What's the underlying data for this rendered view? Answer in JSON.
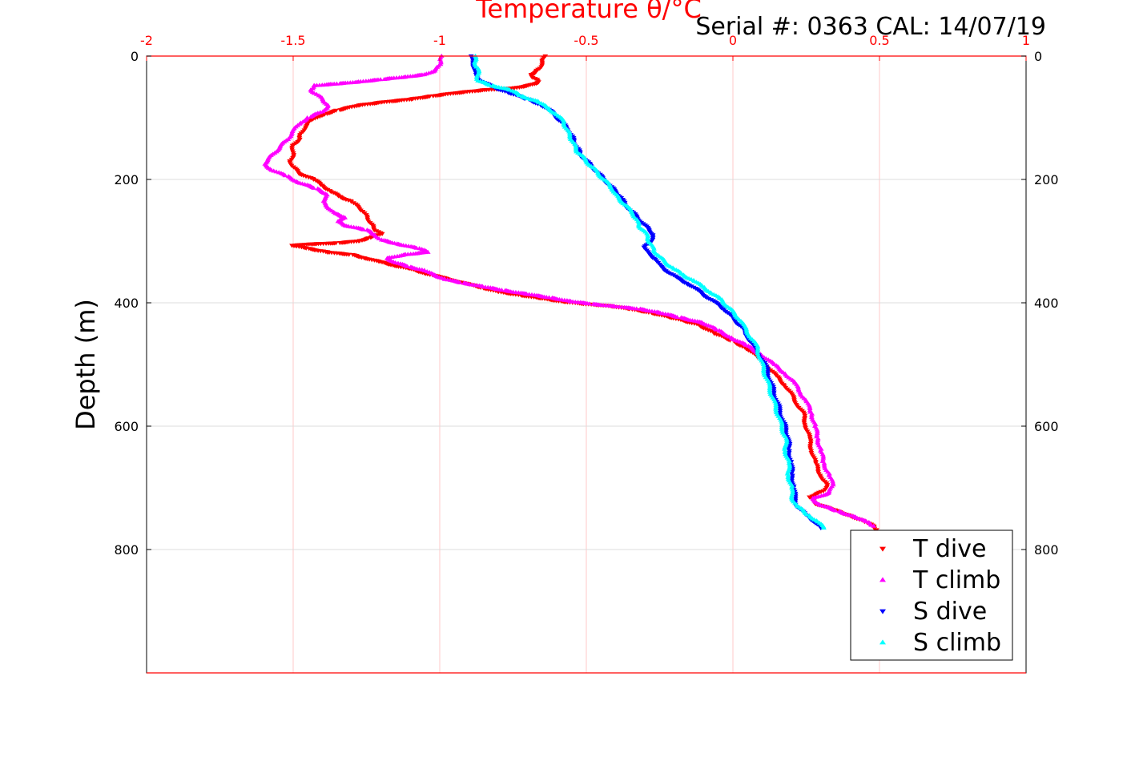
{
  "serial_label": "Serial #: 0363  CAL: 14/07/19",
  "chart_data": {
    "type": "scatter",
    "title": "",
    "xlabel": "Temperature θ/°C",
    "ylabel": "Depth (m)",
    "xlim": [
      -2,
      1
    ],
    "ylim": [
      0,
      1000
    ],
    "y_reversed": true,
    "x_axis_position": "top",
    "x_ticks": [
      "-2",
      "-1.5",
      "-1",
      "-0.5",
      "0",
      "0.5",
      "1"
    ],
    "y_ticks": [
      "0",
      "200",
      "400",
      "600",
      "800"
    ],
    "grid": true,
    "legend_position": "bottom-right",
    "colors": {
      "axis_x": "#ff0000",
      "grid_x": "#ffc8c8",
      "grid_y": "#dddddd"
    },
    "series": [
      {
        "name": "T dive",
        "color": "#ff0000",
        "marker": "triangle-down",
        "points": [
          [
            -0.64,
            0
          ],
          [
            -0.65,
            10
          ],
          [
            -0.66,
            20
          ],
          [
            -0.67,
            25
          ],
          [
            -0.69,
            30
          ],
          [
            -0.68,
            35
          ],
          [
            -0.67,
            38
          ],
          [
            -0.66,
            42
          ],
          [
            -0.68,
            45
          ],
          [
            -0.7,
            48
          ],
          [
            -0.75,
            52
          ],
          [
            -0.85,
            55
          ],
          [
            -0.95,
            60
          ],
          [
            -1.03,
            65
          ],
          [
            -1.1,
            70
          ],
          [
            -1.2,
            75
          ],
          [
            -1.28,
            80
          ],
          [
            -1.35,
            88
          ],
          [
            -1.4,
            95
          ],
          [
            -1.44,
            105
          ],
          [
            -1.46,
            115
          ],
          [
            -1.47,
            125
          ],
          [
            -1.48,
            135
          ],
          [
            -1.5,
            145
          ],
          [
            -1.5,
            160
          ],
          [
            -1.51,
            170
          ],
          [
            -1.5,
            180
          ],
          [
            -1.48,
            190
          ],
          [
            -1.43,
            200
          ],
          [
            -1.4,
            210
          ],
          [
            -1.37,
            220
          ],
          [
            -1.34,
            228
          ],
          [
            -1.3,
            236
          ],
          [
            -1.28,
            244
          ],
          [
            -1.26,
            252
          ],
          [
            -1.25,
            260
          ],
          [
            -1.24,
            268
          ],
          [
            -1.23,
            275
          ],
          [
            -1.22,
            282
          ],
          [
            -1.2,
            288
          ],
          [
            -1.24,
            295
          ],
          [
            -1.28,
            300
          ],
          [
            -1.35,
            303
          ],
          [
            -1.45,
            305
          ],
          [
            -1.5,
            307
          ],
          [
            -1.45,
            312
          ],
          [
            -1.38,
            318
          ],
          [
            -1.3,
            322
          ],
          [
            -1.25,
            328
          ],
          [
            -1.2,
            334
          ],
          [
            -1.15,
            340
          ],
          [
            -1.1,
            345
          ],
          [
            -1.05,
            352
          ],
          [
            -1.0,
            358
          ],
          [
            -0.95,
            364
          ],
          [
            -0.9,
            370
          ],
          [
            -0.85,
            376
          ],
          [
            -0.8,
            382
          ],
          [
            -0.72,
            388
          ],
          [
            -0.65,
            393
          ],
          [
            -0.58,
            398
          ],
          [
            -0.5,
            402
          ],
          [
            -0.42,
            405
          ],
          [
            -0.35,
            410
          ],
          [
            -0.28,
            416
          ],
          [
            -0.2,
            425
          ],
          [
            -0.12,
            435
          ],
          [
            -0.06,
            450
          ],
          [
            0.0,
            462
          ],
          [
            0.05,
            475
          ],
          [
            0.09,
            490
          ],
          [
            0.12,
            505
          ],
          [
            0.15,
            520
          ],
          [
            0.18,
            535
          ],
          [
            0.2,
            550
          ],
          [
            0.22,
            565
          ],
          [
            0.24,
            580
          ],
          [
            0.25,
            600
          ],
          [
            0.26,
            620
          ],
          [
            0.27,
            640
          ],
          [
            0.28,
            660
          ],
          [
            0.3,
            680
          ],
          [
            0.32,
            695
          ],
          [
            0.31,
            705
          ],
          [
            0.26,
            715
          ],
          [
            0.28,
            725
          ],
          [
            0.34,
            735
          ],
          [
            0.4,
            745
          ],
          [
            0.45,
            755
          ],
          [
            0.48,
            762
          ],
          [
            0.49,
            768
          ]
        ]
      },
      {
        "name": "T climb",
        "color": "#ff00ff",
        "marker": "triangle-up",
        "points": [
          [
            -0.99,
            0
          ],
          [
            -1.0,
            8
          ],
          [
            -1.0,
            16
          ],
          [
            -1.02,
            24
          ],
          [
            -1.05,
            30
          ],
          [
            -1.12,
            34
          ],
          [
            -1.2,
            38
          ],
          [
            -1.28,
            42
          ],
          [
            -1.35,
            45
          ],
          [
            -1.43,
            48
          ],
          [
            -1.44,
            55
          ],
          [
            -1.42,
            62
          ],
          [
            -1.4,
            70
          ],
          [
            -1.38,
            80
          ],
          [
            -1.4,
            90
          ],
          [
            -1.45,
            100
          ],
          [
            -1.48,
            110
          ],
          [
            -1.5,
            122
          ],
          [
            -1.52,
            135
          ],
          [
            -1.54,
            145
          ],
          [
            -1.56,
            155
          ],
          [
            -1.58,
            165
          ],
          [
            -1.6,
            175
          ],
          [
            -1.57,
            185
          ],
          [
            -1.52,
            195
          ],
          [
            -1.48,
            205
          ],
          [
            -1.42,
            215
          ],
          [
            -1.38,
            225
          ],
          [
            -1.4,
            235
          ],
          [
            -1.38,
            245
          ],
          [
            -1.36,
            255
          ],
          [
            -1.32,
            262
          ],
          [
            -1.35,
            268
          ],
          [
            -1.32,
            275
          ],
          [
            -1.25,
            282
          ],
          [
            -1.22,
            290
          ],
          [
            -1.2,
            298
          ],
          [
            -1.14,
            305
          ],
          [
            -1.07,
            312
          ],
          [
            -1.04,
            318
          ],
          [
            -1.12,
            322
          ],
          [
            -1.18,
            328
          ],
          [
            -1.15,
            335
          ],
          [
            -1.1,
            342
          ],
          [
            -1.05,
            348
          ],
          [
            -1.02,
            355
          ],
          [
            -0.98,
            362
          ],
          [
            -0.92,
            368
          ],
          [
            -0.85,
            374
          ],
          [
            -0.78,
            380
          ],
          [
            -0.7,
            386
          ],
          [
            -0.62,
            392
          ],
          [
            -0.55,
            398
          ],
          [
            -0.48,
            402
          ],
          [
            -0.4,
            406
          ],
          [
            -0.32,
            410
          ],
          [
            -0.25,
            416
          ],
          [
            -0.18,
            424
          ],
          [
            -0.1,
            433
          ],
          [
            -0.05,
            445
          ],
          [
            0.0,
            458
          ],
          [
            0.05,
            470
          ],
          [
            0.1,
            485
          ],
          [
            0.14,
            500
          ],
          [
            0.18,
            515
          ],
          [
            0.21,
            530
          ],
          [
            0.23,
            545
          ],
          [
            0.25,
            560
          ],
          [
            0.27,
            580
          ],
          [
            0.28,
            600
          ],
          [
            0.29,
            620
          ],
          [
            0.3,
            640
          ],
          [
            0.31,
            660
          ],
          [
            0.33,
            680
          ],
          [
            0.34,
            695
          ],
          [
            0.33,
            708
          ],
          [
            0.27,
            718
          ],
          [
            0.3,
            728
          ],
          [
            0.36,
            738
          ],
          [
            0.42,
            748
          ],
          [
            0.46,
            756
          ],
          [
            0.48,
            762
          ]
        ]
      },
      {
        "name": "S dive",
        "color": "#0000ff",
        "marker": "triangle-down",
        "points": [
          [
            -0.89,
            0
          ],
          [
            -0.89,
            10
          ],
          [
            -0.88,
            20
          ],
          [
            -0.88,
            30
          ],
          [
            -0.86,
            40
          ],
          [
            -0.82,
            50
          ],
          [
            -0.76,
            60
          ],
          [
            -0.7,
            70
          ],
          [
            -0.65,
            80
          ],
          [
            -0.62,
            90
          ],
          [
            -0.6,
            100
          ],
          [
            -0.58,
            110
          ],
          [
            -0.56,
            120
          ],
          [
            -0.55,
            130
          ],
          [
            -0.54,
            140
          ],
          [
            -0.53,
            150
          ],
          [
            -0.52,
            160
          ],
          [
            -0.5,
            170
          ],
          [
            -0.48,
            180
          ],
          [
            -0.46,
            190
          ],
          [
            -0.44,
            200
          ],
          [
            -0.42,
            210
          ],
          [
            -0.4,
            220
          ],
          [
            -0.38,
            230
          ],
          [
            -0.37,
            240
          ],
          [
            -0.35,
            250
          ],
          [
            -0.33,
            260
          ],
          [
            -0.31,
            270
          ],
          [
            -0.29,
            280
          ],
          [
            -0.27,
            290
          ],
          [
            -0.28,
            300
          ],
          [
            -0.3,
            310
          ],
          [
            -0.29,
            320
          ],
          [
            -0.26,
            330
          ],
          [
            -0.25,
            340
          ],
          [
            -0.22,
            350
          ],
          [
            -0.19,
            360
          ],
          [
            -0.15,
            370
          ],
          [
            -0.12,
            380
          ],
          [
            -0.09,
            390
          ],
          [
            -0.06,
            400
          ],
          [
            -0.03,
            410
          ],
          [
            -0.01,
            420
          ],
          [
            0.01,
            430
          ],
          [
            0.03,
            440
          ],
          [
            0.05,
            455
          ],
          [
            0.07,
            470
          ],
          [
            0.09,
            485
          ],
          [
            0.11,
            500
          ],
          [
            0.12,
            515
          ],
          [
            0.13,
            530
          ],
          [
            0.14,
            545
          ],
          [
            0.15,
            560
          ],
          [
            0.16,
            575
          ],
          [
            0.17,
            590
          ],
          [
            0.18,
            605
          ],
          [
            0.19,
            620
          ],
          [
            0.19,
            640
          ],
          [
            0.2,
            660
          ],
          [
            0.2,
            680
          ],
          [
            0.21,
            700
          ],
          [
            0.21,
            715
          ],
          [
            0.22,
            730
          ],
          [
            0.25,
            745
          ],
          [
            0.28,
            755
          ],
          [
            0.3,
            765
          ]
        ]
      },
      {
        "name": "S climb",
        "color": "#00ffff",
        "marker": "triangle-up",
        "points": [
          [
            -0.88,
            0
          ],
          [
            -0.88,
            10
          ],
          [
            -0.87,
            20
          ],
          [
            -0.87,
            30
          ],
          [
            -0.87,
            40
          ],
          [
            -0.82,
            48
          ],
          [
            -0.76,
            55
          ],
          [
            -0.72,
            65
          ],
          [
            -0.66,
            75
          ],
          [
            -0.63,
            85
          ],
          [
            -0.6,
            95
          ],
          [
            -0.58,
            105
          ],
          [
            -0.57,
            115
          ],
          [
            -0.56,
            125
          ],
          [
            -0.55,
            135
          ],
          [
            -0.54,
            145
          ],
          [
            -0.53,
            155
          ],
          [
            -0.51,
            165
          ],
          [
            -0.49,
            175
          ],
          [
            -0.47,
            185
          ],
          [
            -0.45,
            195
          ],
          [
            -0.43,
            205
          ],
          [
            -0.41,
            215
          ],
          [
            -0.4,
            225
          ],
          [
            -0.38,
            235
          ],
          [
            -0.36,
            245
          ],
          [
            -0.34,
            255
          ],
          [
            -0.33,
            265
          ],
          [
            -0.32,
            275
          ],
          [
            -0.3,
            285
          ],
          [
            -0.29,
            295
          ],
          [
            -0.28,
            305
          ],
          [
            -0.27,
            315
          ],
          [
            -0.25,
            325
          ],
          [
            -0.23,
            335
          ],
          [
            -0.2,
            345
          ],
          [
            -0.17,
            355
          ],
          [
            -0.13,
            365
          ],
          [
            -0.1,
            375
          ],
          [
            -0.07,
            385
          ],
          [
            -0.04,
            395
          ],
          [
            -0.02,
            405
          ],
          [
            0.0,
            415
          ],
          [
            0.02,
            425
          ],
          [
            0.04,
            440
          ],
          [
            0.06,
            455
          ],
          [
            0.08,
            470
          ],
          [
            0.09,
            485
          ],
          [
            0.1,
            500
          ],
          [
            0.11,
            515
          ],
          [
            0.12,
            530
          ],
          [
            0.13,
            545
          ],
          [
            0.14,
            560
          ],
          [
            0.15,
            575
          ],
          [
            0.16,
            590
          ],
          [
            0.17,
            605
          ],
          [
            0.18,
            620
          ],
          [
            0.18,
            640
          ],
          [
            0.19,
            660
          ],
          [
            0.19,
            680
          ],
          [
            0.2,
            700
          ],
          [
            0.2,
            715
          ],
          [
            0.22,
            730
          ],
          [
            0.26,
            745
          ],
          [
            0.29,
            755
          ],
          [
            0.31,
            765
          ]
        ]
      }
    ]
  }
}
